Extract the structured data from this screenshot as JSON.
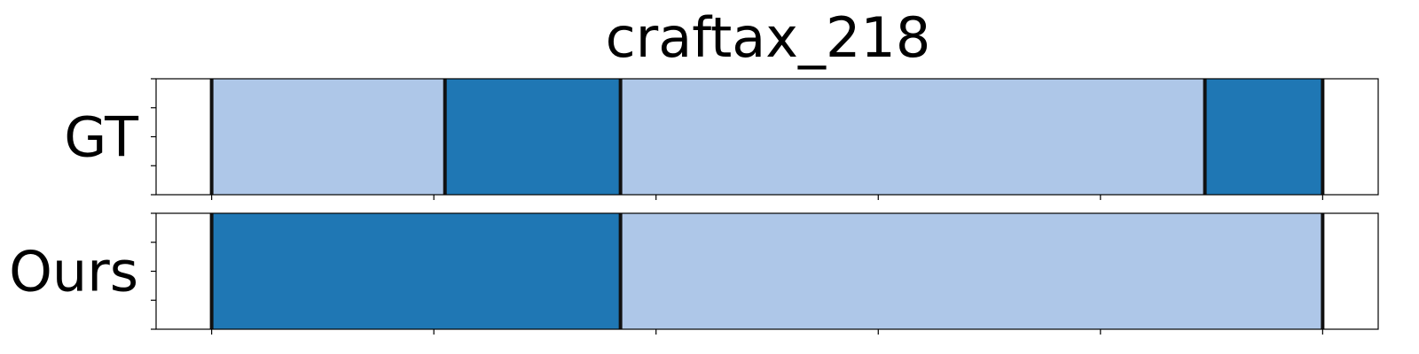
{
  "chart_data": {
    "type": "bar",
    "title": "craftax_218",
    "x_range": [
      -25,
      525
    ],
    "x_ticks": [
      0,
      100,
      200,
      300,
      400,
      500
    ],
    "show_tick_labels": false,
    "rows": [
      {
        "label": "GT",
        "segments": [
          {
            "start": 0,
            "end": 105,
            "class": 0
          },
          {
            "start": 105,
            "end": 184,
            "class": 1
          },
          {
            "start": 184,
            "end": 447,
            "class": 0
          },
          {
            "start": 447,
            "end": 500,
            "class": 1
          }
        ],
        "boundaries": [
          0,
          105,
          184,
          447,
          500
        ]
      },
      {
        "label": "Ours",
        "segments": [
          {
            "start": 0,
            "end": 184,
            "class": 1
          },
          {
            "start": 184,
            "end": 500,
            "class": 0
          }
        ],
        "boundaries": [
          0,
          184,
          500
        ]
      }
    ],
    "class_colors": [
      "#aec7e8",
      "#1f77b4"
    ],
    "boundary_color": "#111111",
    "grid": false
  }
}
